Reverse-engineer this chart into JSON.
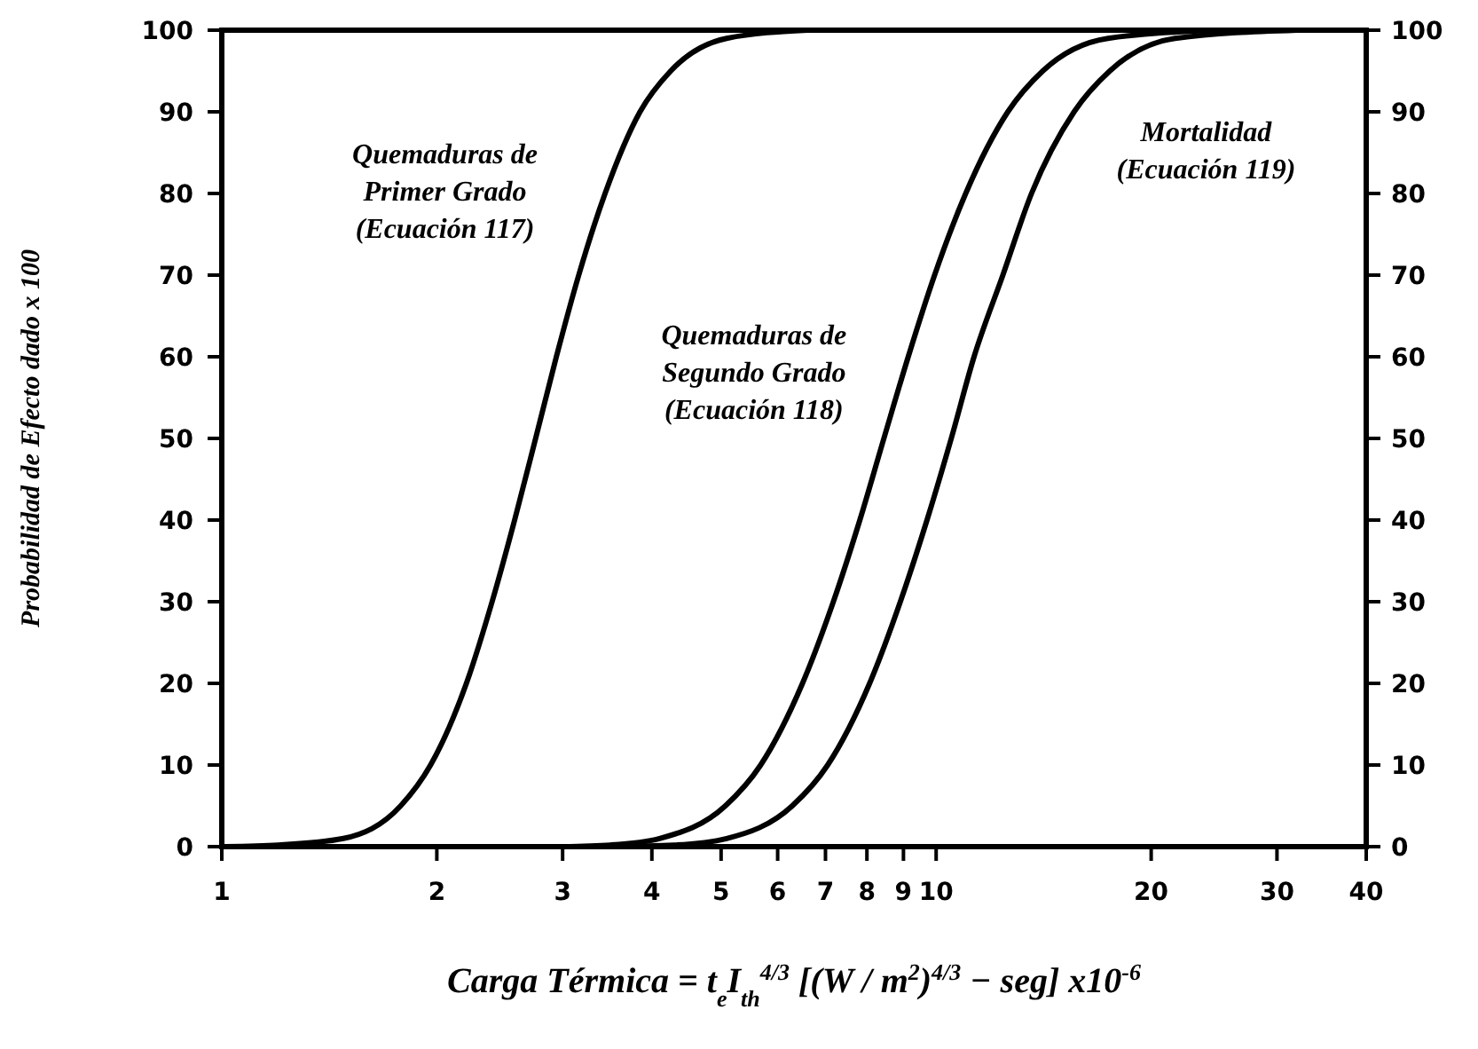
{
  "chart_data": {
    "type": "line",
    "xlabel": "Carga Térmica = t$_{e}$I$_{th}$$^{4/3}$ [(W / m$^{2}$)$^{4/3}$ − seg] x10$^{-6}$",
    "ylabel": "Probabilidad de Efecto dado x 100",
    "log": "x",
    "xlim": [
      1,
      40
    ],
    "xticks": [
      1,
      2,
      3,
      4,
      5,
      6,
      7,
      8,
      9,
      10,
      20,
      30,
      40
    ],
    "ylim": [
      0,
      100
    ],
    "yticks": [
      0,
      10,
      20,
      30,
      40,
      50,
      60,
      70,
      80,
      90,
      100
    ],
    "y2lim": [
      0,
      100
    ],
    "y2ticks": [
      0,
      10,
      20,
      30,
      40,
      50,
      60,
      70,
      80,
      90,
      100
    ],
    "line_style": "solid",
    "marker": "none",
    "grid": false,
    "series": [
      {
        "color": "#000000",
        "x": [
          1,
          1.2,
          1.48,
          1.78,
          1.96,
          2.2,
          2.39,
          2.57,
          2.75,
          2.94,
          3.16,
          3.44,
          3.85,
          4.25,
          5.09,
          6.6
        ],
        "values": [
          0,
          0.2,
          1,
          5,
          10,
          20,
          30,
          40,
          50,
          60,
          70,
          80,
          90,
          95,
          99,
          100
        ]
      },
      {
        "color": "#000000",
        "x": [
          3,
          3.5,
          4.1,
          5.07,
          5.68,
          6.5,
          7.18,
          7.82,
          8.45,
          9.14,
          9.95,
          11.0,
          12.6,
          14.1,
          17.4,
          25
        ],
        "values": [
          0,
          0.2,
          1,
          5,
          10,
          20,
          30,
          40,
          50,
          60,
          70,
          80,
          90,
          95,
          99,
          100
        ]
      },
      {
        "color": "#000000",
        "x": [
          3.5,
          4.3,
          5.09,
          6.29,
          7.05,
          8.07,
          8.91,
          9.71,
          10.5,
          11.3,
          12.4,
          13.6,
          15.6,
          17.5,
          21.6,
          32
        ],
        "values": [
          0,
          0.2,
          1,
          5,
          10,
          20,
          30,
          40,
          50,
          60,
          70,
          80,
          90,
          95,
          99,
          100
        ]
      }
    ],
    "annotations": [
      "Quemaduras de\nPrimer Grado\n(Ecuación 117)",
      "Quemaduras de\nSegundo Grado\n(Ecuación 118)",
      "Mortalidad\n(Ecuación 119)"
    ]
  }
}
